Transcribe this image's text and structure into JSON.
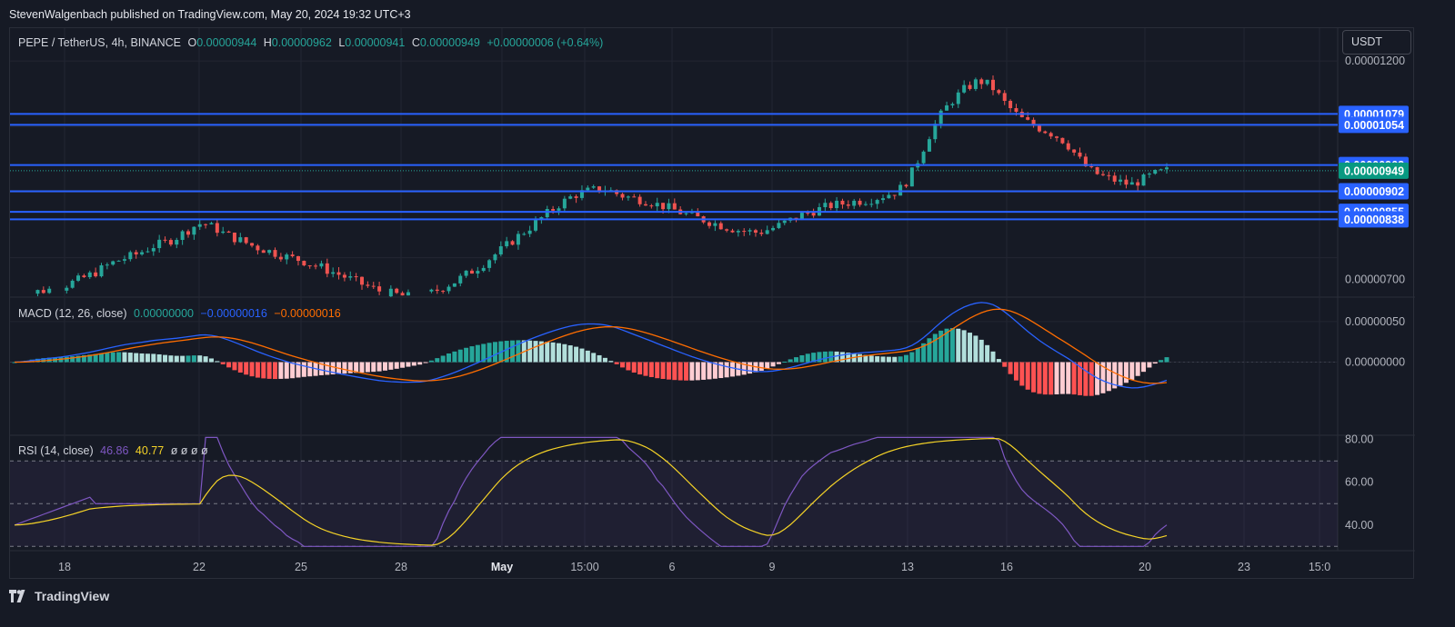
{
  "header": {
    "publisher": "StevenWalgenbach published on TradingView.com, May 20, 2024 19:32 UTC+3"
  },
  "price_legend": {
    "symbol": "PEPE / TetherUS, 4h, BINANCE",
    "o_label": "O",
    "o_value": "0.00000944",
    "h_label": "H",
    "h_value": "0.00000962",
    "l_label": "L",
    "l_value": "0.00000941",
    "c_label": "C",
    "c_value": "0.00000949",
    "change": "+0.00000006 (+0.64%)"
  },
  "macd_legend": {
    "title": "MACD (12, 26, close)",
    "hist": "0.00000000",
    "macd": "−0.00000016",
    "signal": "−0.00000016"
  },
  "rsi_legend": {
    "title": "RSI (14, close)",
    "rsi": "46.86",
    "ma": "40.77",
    "extra": "ø ø ø ø"
  },
  "currency_button": "USDT",
  "brand": "TradingView",
  "colors": {
    "up": "#26a69a",
    "down": "#ef5350",
    "level_line": "#2962ff",
    "macd_line": "#2962ff",
    "signal_line": "#ff6d00",
    "rsi_line": "#7e57c2",
    "rsi_ma": "#f5d327",
    "rsi_band": "#7e57c2"
  },
  "chart_data": [
    {
      "type": "candlestick",
      "title": "PEPE / TetherUS, 4h, BINANCE",
      "ylim": [
        6.6e-06,
        1.275e-05
      ],
      "y_ticks": [
        "0.00001200",
        "0.00000700"
      ],
      "x_ticks": [
        "18",
        "22",
        "25",
        "28",
        "May",
        "15:00",
        "6",
        "9",
        "13",
        "16",
        "20",
        "23",
        "15:0"
      ],
      "horizontal_levels": [
        "0.00001079",
        "0.00001054",
        "0.00000962",
        "0.00000902",
        "0.00000855",
        "0.00000838"
      ],
      "last_price": "0.00000949",
      "close_series": [
        6.55,
        6.6,
        6.68,
        6.72,
        6.75,
        6.78,
        6.8,
        6.85,
        6.92,
        6.98,
        7.05,
        7.12,
        7.2,
        7.3,
        7.38,
        7.45,
        7.5,
        7.55,
        7.62,
        7.7,
        7.78,
        7.82,
        7.88,
        7.95,
        8.05,
        8.15,
        8.25,
        8.3,
        8.22,
        8.15,
        8.05,
        7.98,
        7.92,
        7.85,
        7.78,
        7.72,
        7.68,
        7.62,
        7.58,
        7.52,
        7.48,
        7.45,
        7.38,
        7.32,
        7.28,
        7.2,
        7.15,
        7.08,
        7.02,
        6.95,
        6.88,
        6.82,
        6.75,
        6.72,
        6.68,
        6.65,
        6.62,
        6.6,
        6.58,
        6.65,
        6.72,
        6.8,
        6.88,
        6.95,
        7.05,
        7.15,
        7.25,
        7.35,
        7.48,
        7.6,
        7.72,
        7.85,
        7.98,
        8.1,
        8.22,
        8.35,
        8.48,
        8.6,
        8.72,
        8.82,
        8.92,
        8.98,
        9.02,
        9.05,
        9.08,
        9.05,
        8.98,
        8.92,
        8.88,
        8.85,
        8.82,
        8.78,
        8.72,
        8.68,
        8.62,
        8.56,
        8.5,
        8.45,
        8.4,
        8.35,
        8.3,
        8.25,
        8.2,
        8.16,
        8.12,
        8.1,
        8.08,
        8.1,
        8.15,
        8.2,
        8.28,
        8.35,
        8.42,
        8.5,
        8.55,
        8.6,
        8.65,
        8.7,
        8.72,
        8.75,
        8.78,
        8.8,
        8.82,
        8.85,
        8.9,
        8.95,
        9.0,
        9.1,
        9.3,
        9.6,
        9.95,
        10.3,
        10.6,
        10.85,
        11.05,
        11.2,
        11.35,
        11.45,
        11.55,
        11.5,
        11.4,
        11.2,
        11.0,
        10.85,
        10.7,
        10.6,
        10.52,
        10.45,
        10.38,
        10.3,
        10.2,
        10.05,
        9.85,
        9.65,
        9.5,
        9.42,
        9.35,
        9.3,
        9.25,
        9.2,
        9.18,
        9.25,
        9.32,
        9.4,
        9.45,
        9.49
      ],
      "ohlc_bar_count": 200
    },
    {
      "type": "macd",
      "title": "MACD (12, 26, close)",
      "ylim": [
        -9e-07,
        8e-07
      ],
      "y_ticks": [
        "0.00000050",
        "0.00000000"
      ]
    },
    {
      "type": "rsi",
      "title": "RSI (14, close)",
      "ylim": [
        28,
        82
      ],
      "y_ticks": [
        "80.00",
        "60.00",
        "40.00"
      ],
      "bands": [
        70,
        50,
        30
      ],
      "last_rsi": 46.86,
      "last_ma": 40.77
    }
  ]
}
